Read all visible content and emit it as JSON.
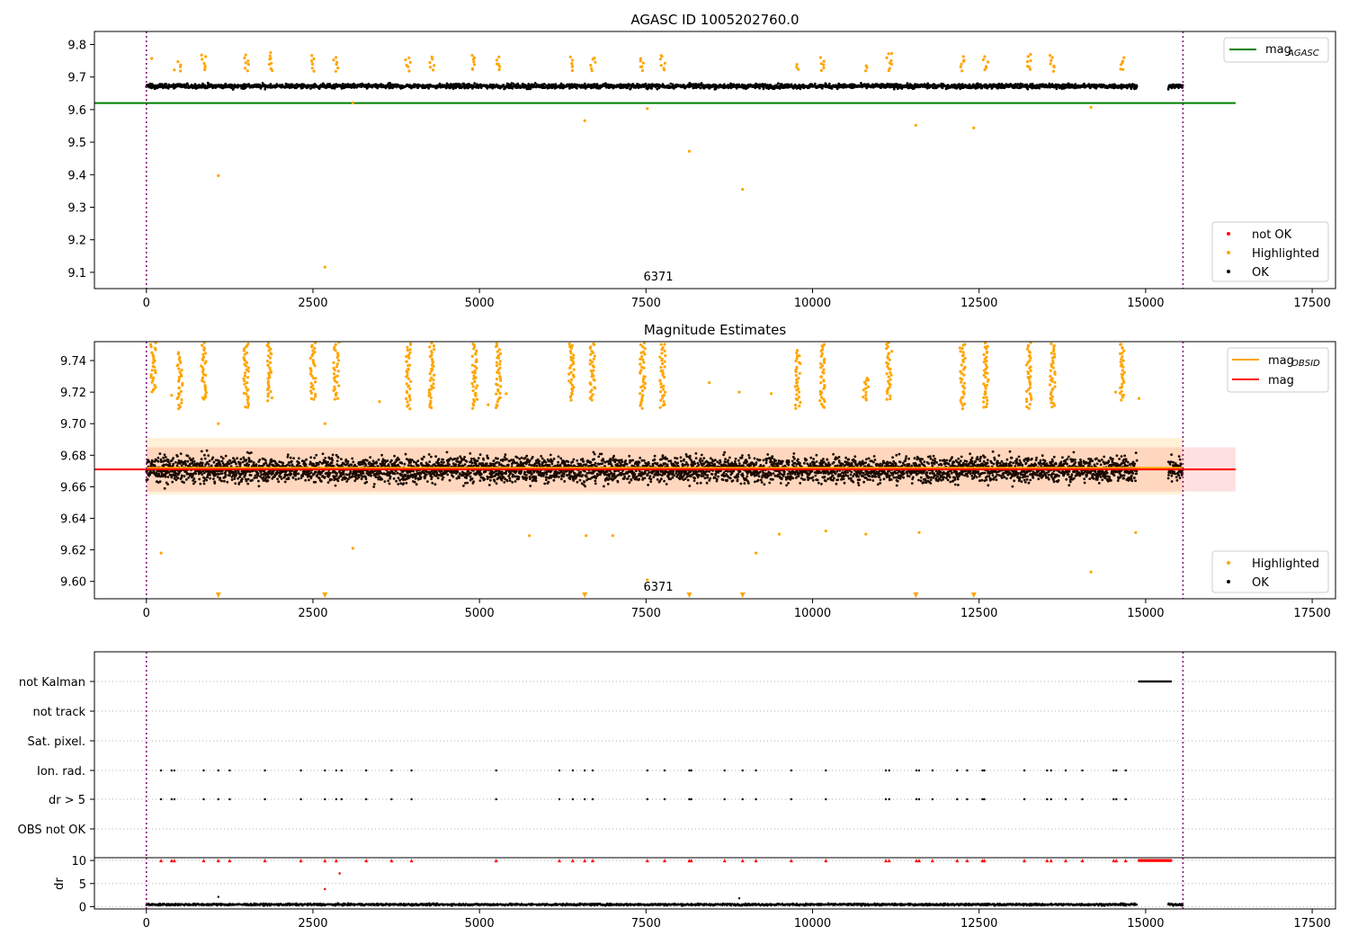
{
  "chart_data": [
    {
      "type": "scatter",
      "title": "AGASC ID 1005202760.0",
      "xlim": [
        -780,
        17850
      ],
      "ylim": [
        9.05,
        9.84
      ],
      "x_ticks": [
        0,
        2500,
        5000,
        7500,
        10000,
        12500,
        15000,
        17500
      ],
      "y_ticks": [
        9.1,
        9.2,
        9.3,
        9.4,
        9.5,
        9.6,
        9.7,
        9.8
      ],
      "y_tick_labels": [
        "9.1",
        "9.2",
        "9.3",
        "9.4",
        "9.5",
        "9.6",
        "9.7",
        "9.8"
      ],
      "annotation": {
        "text": "6371",
        "x": 7520,
        "y": 9.07
      },
      "vlines": [
        0,
        15560
      ],
      "hlines": [
        {
          "name": "mag_AGASC",
          "y": 9.62,
          "xmin": -780,
          "xmax": 16350,
          "color": "#008000"
        }
      ],
      "ok_band": {
        "center": 9.672,
        "spread": 0.012,
        "segments": [
          [
            0,
            14870
          ],
          [
            15340,
            15560
          ]
        ]
      },
      "highlighted_points": [
        [
          80,
          9.757
        ],
        [
          420,
          9.722
        ],
        [
          1080,
          9.397
        ],
        [
          2680,
          9.116
        ],
        [
          3100,
          9.621
        ],
        [
          6580,
          9.566
        ],
        [
          7520,
          9.603
        ],
        [
          8150,
          9.472
        ],
        [
          8950,
          9.355
        ],
        [
          11550,
          9.552
        ],
        [
          12420,
          9.544
        ],
        [
          14180,
          9.607
        ]
      ],
      "highlight_columns": [
        [
          500,
          9.72,
          9.75
        ],
        [
          860,
          9.72,
          9.77
        ],
        [
          1500,
          9.72,
          9.77
        ],
        [
          1850,
          9.72,
          9.78
        ],
        [
          2500,
          9.72,
          9.77
        ],
        [
          2850,
          9.72,
          9.76
        ],
        [
          3930,
          9.72,
          9.76
        ],
        [
          4280,
          9.72,
          9.76
        ],
        [
          4930,
          9.72,
          9.77
        ],
        [
          5280,
          9.72,
          9.76
        ],
        [
          6380,
          9.72,
          9.76
        ],
        [
          6700,
          9.72,
          9.76
        ],
        [
          7450,
          9.72,
          9.76
        ],
        [
          7750,
          9.72,
          9.77
        ],
        [
          9780,
          9.72,
          9.74
        ],
        [
          10150,
          9.72,
          9.76
        ],
        [
          10800,
          9.72,
          9.74
        ],
        [
          11150,
          9.72,
          9.78
        ],
        [
          12250,
          9.72,
          9.76
        ],
        [
          12600,
          9.72,
          9.76
        ],
        [
          13250,
          9.72,
          9.77
        ],
        [
          13600,
          9.72,
          9.77
        ],
        [
          14650,
          9.72,
          9.76
        ]
      ],
      "legends": [
        {
          "position": "upper-right",
          "entries": [
            {
              "label": "mag",
              "sub": "AGASC",
              "color": "#008000",
              "marker": "line"
            }
          ]
        },
        {
          "position": "lower-right",
          "entries": [
            {
              "label": "not OK",
              "color": "#ff0000",
              "marker": "dot"
            },
            {
              "label": "Highlighted",
              "color": "#ffa500",
              "marker": "dot"
            },
            {
              "label": "OK",
              "color": "#000000",
              "marker": "dot"
            }
          ]
        }
      ]
    },
    {
      "type": "scatter",
      "title": "Magnitude Estimates",
      "xlim": [
        -780,
        17850
      ],
      "ylim": [
        9.589,
        9.752
      ],
      "x_ticks": [
        0,
        2500,
        5000,
        7500,
        10000,
        12500,
        15000,
        17500
      ],
      "y_ticks": [
        9.6,
        9.62,
        9.64,
        9.66,
        9.68,
        9.7,
        9.72,
        9.74
      ],
      "y_tick_labels": [
        "9.60",
        "9.62",
        "9.64",
        "9.66",
        "9.68",
        "9.70",
        "9.72",
        "9.74"
      ],
      "annotation": {
        "text": "6371",
        "x": 7520,
        "y": 9.593
      },
      "vlines": [
        0,
        15560
      ],
      "mag": {
        "value": 9.671,
        "band": [
          9.657,
          9.685
        ],
        "xmax": 16350,
        "color": "#ff0000"
      },
      "mag_obsid": {
        "value": 9.672,
        "band": [
          9.655,
          9.691
        ],
        "x": [
          0,
          15560
        ],
        "color": "#ffa500"
      },
      "ok_band": {
        "center": 9.671,
        "spread": 0.012,
        "segments": [
          [
            0,
            14870
          ],
          [
            15340,
            15560
          ]
        ]
      },
      "highlighted_points": [
        [
          220,
          9.618
        ],
        [
          380,
          9.718
        ],
        [
          1080,
          9.7
        ],
        [
          2680,
          9.7
        ],
        [
          3100,
          9.621
        ],
        [
          3500,
          9.714
        ],
        [
          5130,
          9.712
        ],
        [
          5400,
          9.719
        ],
        [
          5750,
          9.629
        ],
        [
          6600,
          9.629
        ],
        [
          7000,
          9.629
        ],
        [
          8450,
          9.726
        ],
        [
          8900,
          9.72
        ],
        [
          9150,
          9.618
        ],
        [
          9380,
          9.719
        ],
        [
          9500,
          9.63
        ],
        [
          10200,
          9.632
        ],
        [
          10800,
          9.63
        ],
        [
          11600,
          9.631
        ],
        [
          14550,
          9.72
        ],
        [
          14850,
          9.631
        ],
        [
          14900,
          9.716
        ],
        [
          14180,
          9.606
        ],
        [
          7520,
          9.601
        ]
      ],
      "highlight_columns": [
        [
          100,
          9.72,
          9.752
        ],
        [
          500,
          9.71,
          9.745
        ],
        [
          860,
          9.715,
          9.752
        ],
        [
          1500,
          9.71,
          9.752
        ],
        [
          1850,
          9.715,
          9.752
        ],
        [
          2500,
          9.715,
          9.752
        ],
        [
          2850,
          9.715,
          9.752
        ],
        [
          3930,
          9.71,
          9.752
        ],
        [
          4280,
          9.71,
          9.752
        ],
        [
          4930,
          9.71,
          9.752
        ],
        [
          5280,
          9.71,
          9.752
        ],
        [
          6380,
          9.715,
          9.752
        ],
        [
          6700,
          9.715,
          9.752
        ],
        [
          7450,
          9.71,
          9.752
        ],
        [
          7750,
          9.71,
          9.752
        ],
        [
          9780,
          9.71,
          9.747
        ],
        [
          10150,
          9.71,
          9.752
        ],
        [
          10800,
          9.715,
          9.73
        ],
        [
          11150,
          9.715,
          9.752
        ],
        [
          12250,
          9.71,
          9.752
        ],
        [
          12600,
          9.71,
          9.752
        ],
        [
          13250,
          9.71,
          9.752
        ],
        [
          13600,
          9.71,
          9.752
        ],
        [
          14650,
          9.715,
          9.752
        ]
      ],
      "clipped_markers": [
        1080,
        2680,
        6580,
        8150,
        8950,
        11550,
        12420
      ],
      "legends": [
        {
          "position": "upper-right",
          "entries": [
            {
              "label": "mag",
              "sub": "OBSID",
              "color": "#ffa500",
              "marker": "line"
            },
            {
              "label": "mag",
              "sub": "",
              "color": "#ff0000",
              "marker": "line"
            }
          ]
        },
        {
          "position": "lower-right",
          "entries": [
            {
              "label": "Highlighted",
              "color": "#ffa500",
              "marker": "dot"
            },
            {
              "label": "OK",
              "color": "#000000",
              "marker": "dot"
            }
          ]
        }
      ]
    },
    {
      "type": "scatter",
      "title": "",
      "xlim": [
        -780,
        17850
      ],
      "categories": [
        "not Kalman",
        "not track",
        "Sat. pixel.",
        "Ion. rad.",
        "dr > 5",
        "OBS not OK"
      ],
      "vlines": [
        0,
        15560
      ],
      "not_kalman_range": [
        14900,
        15380
      ],
      "flag_x": [
        220,
        380,
        420,
        860,
        1080,
        1250,
        1780,
        2320,
        2680,
        2850,
        2930,
        3300,
        3680,
        3980,
        5250,
        6200,
        6400,
        6580,
        6700,
        7520,
        7780,
        8150,
        8180,
        8680,
        8950,
        9150,
        9680,
        10200,
        11100,
        11150,
        11560,
        11600,
        11800,
        12170,
        12320,
        12550,
        12580,
        13180,
        13520,
        13580,
        13800,
        14050,
        14520,
        14560,
        14700
      ]
    },
    {
      "type": "scatter",
      "title": "",
      "xlim": [
        -780,
        17850
      ],
      "ylabel": "dr",
      "ylim": [
        -0.5,
        10.6
      ],
      "y_ticks": [
        0,
        5,
        10
      ],
      "y_tick_labels": [
        "0",
        "5",
        "10"
      ],
      "x_ticks": [
        0,
        2500,
        5000,
        7500,
        10000,
        12500,
        15000,
        17500
      ],
      "x_tick_labels": [
        "0",
        "2500",
        "5000",
        "7500",
        "10000",
        "12500",
        "15000",
        "17500"
      ],
      "vlines": [
        0,
        15560
      ],
      "clipped_markers": [
        220,
        380,
        420,
        860,
        1080,
        1250,
        1780,
        2320,
        2680,
        2850,
        3300,
        3680,
        3980,
        5250,
        6200,
        6400,
        6580,
        6700,
        7520,
        7780,
        8150,
        8180,
        8680,
        8950,
        9150,
        9680,
        10200,
        11100,
        11150,
        11560,
        11600,
        11800,
        12170,
        12320,
        12550,
        12580,
        13180,
        13520,
        13580,
        13800,
        14050,
        14520,
        14560,
        14700
      ],
      "red_run": [
        14900,
        15380
      ],
      "outliers": [
        [
          2680,
          3.8
        ],
        [
          2900,
          7.2
        ],
        [
          1080,
          2.1
        ],
        [
          8900,
          1.8
        ]
      ],
      "baseline": {
        "mean": 0.45,
        "spread": 0.35,
        "segments": [
          [
            0,
            14870
          ],
          [
            15340,
            15560
          ]
        ]
      }
    }
  ]
}
